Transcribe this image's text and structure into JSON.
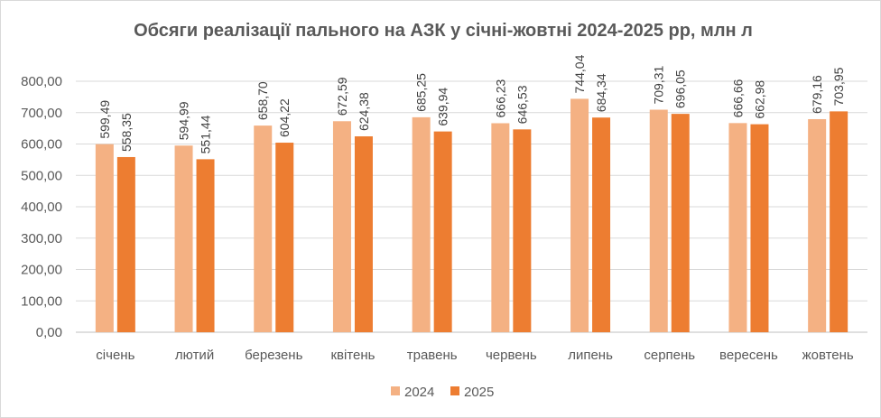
{
  "chart_data": {
    "type": "bar",
    "title": "Обсяги реалізації пального на АЗК у січні-жовтні 2024-2025 рр, млн л",
    "categories": [
      "січень",
      "лютий",
      "березень",
      "квітень",
      "травень",
      "червень",
      "липень",
      "серпень",
      "вересень",
      "жовтень"
    ],
    "series": [
      {
        "name": "2024",
        "color": "#f4b183",
        "values": [
          599.49,
          594.99,
          658.7,
          672.59,
          685.25,
          666.23,
          744.04,
          709.31,
          666.66,
          679.16
        ],
        "labels": [
          "599,49",
          "594,99",
          "658,70",
          "672,59",
          "685,25",
          "666,23",
          "744,04",
          "709,31",
          "666,66",
          "679,16"
        ]
      },
      {
        "name": "2025",
        "color": "#ed7d31",
        "values": [
          558.35,
          551.44,
          604.22,
          624.38,
          639.94,
          646.53,
          684.34,
          696.05,
          662.98,
          703.95
        ],
        "labels": [
          "558,35",
          "551,44",
          "604,22",
          "624,38",
          "639,94",
          "646,53",
          "684,34",
          "696,05",
          "662,98",
          "703,95"
        ]
      }
    ],
    "ylim": [
      0,
      800
    ],
    "yticks": [
      0,
      100,
      200,
      300,
      400,
      500,
      600,
      700,
      800
    ],
    "ytick_labels": [
      "0,00",
      "100,00",
      "200,00",
      "300,00",
      "400,00",
      "500,00",
      "600,00",
      "700,00",
      "800,00"
    ],
    "grid": true,
    "legend_position": "bottom"
  }
}
